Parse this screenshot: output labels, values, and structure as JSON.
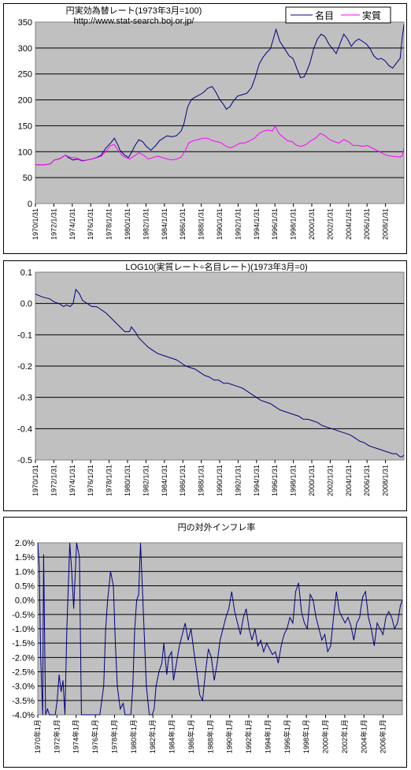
{
  "chart_data": [
    {
      "type": "line",
      "title": "円実効為替レート(1973年3月=100)",
      "subtitle": "http://www.stat-search.boj.or.jp/",
      "ylim": [
        0,
        375
      ],
      "yticks": [
        "0",
        "50",
        "100",
        "150",
        "200",
        "250",
        "300",
        "350"
      ],
      "xlim": [
        1970.0,
        2009.2
      ],
      "xticks": [
        "1970/1/31",
        "1972/1/31",
        "1974/1/31",
        "1976/1/31",
        "1978/1/31",
        "1980/1/31",
        "1982/1/31",
        "1984/1/31",
        "1986/1/31",
        "1988/1/31",
        "1990/1/31",
        "1992/1/31",
        "1994/1/31",
        "1996/1/31",
        "1998/1/31",
        "2000/1/31",
        "2002/1/31",
        "2004/1/31",
        "2006/1/31",
        "2008/1/31"
      ],
      "grid": true,
      "legend": "top-right",
      "series": [
        {
          "name": "名目",
          "color": "#000080",
          "x": [
            1970.0,
            1971.0,
            1971.6,
            1972.0,
            1972.5,
            1973.2,
            1973.5,
            1974.0,
            1974.5,
            1975.0,
            1975.5,
            1976.0,
            1976.5,
            1977.0,
            1977.5,
            1978.0,
            1978.4,
            1978.8,
            1979.0,
            1979.5,
            1979.9,
            1980.2,
            1980.6,
            1981.0,
            1981.4,
            1981.8,
            1982.3,
            1982.8,
            1983.2,
            1983.6,
            1984.0,
            1984.5,
            1985.0,
            1985.5,
            1985.8,
            1986.2,
            1986.6,
            1987.0,
            1987.5,
            1987.9,
            1988.3,
            1988.8,
            1989.2,
            1989.6,
            1990.0,
            1990.3,
            1990.7,
            1991.0,
            1991.5,
            1992.0,
            1992.5,
            1993.0,
            1993.4,
            1993.8,
            1994.2,
            1994.6,
            1995.0,
            1995.3,
            1995.6,
            1996.0,
            1996.5,
            1997.0,
            1997.4,
            1997.8,
            1998.2,
            1998.6,
            1998.9,
            1999.2,
            1999.6,
            2000.0,
            2000.4,
            2000.8,
            2001.2,
            2001.6,
            2002.0,
            2002.4,
            2002.8,
            2003.2,
            2003.6,
            2004.0,
            2004.4,
            2004.8,
            2005.2,
            2005.6,
            2006.0,
            2006.4,
            2006.8,
            2007.2,
            2007.6,
            2008.0,
            2008.4,
            2008.8,
            2009.0,
            2009.2
          ],
          "y": [
            80,
            80,
            82,
            90,
            92,
            100,
            95,
            90,
            92,
            88,
            90,
            92,
            95,
            100,
            115,
            125,
            135,
            120,
            110,
            100,
            95,
            105,
            120,
            132,
            128,
            118,
            110,
            120,
            130,
            135,
            140,
            138,
            140,
            150,
            165,
            200,
            215,
            220,
            225,
            230,
            238,
            242,
            230,
            215,
            205,
            195,
            200,
            210,
            222,
            225,
            228,
            240,
            262,
            288,
            302,
            312,
            320,
            340,
            360,
            335,
            320,
            305,
            300,
            280,
            260,
            262,
            275,
            290,
            320,
            340,
            350,
            345,
            330,
            320,
            310,
            330,
            350,
            340,
            325,
            335,
            340,
            335,
            330,
            320,
            305,
            298,
            300,
            295,
            285,
            280,
            290,
            300,
            340,
            370
          ]
        },
        {
          "name": "実質",
          "color": "#ff00ff",
          "x": [
            1970.0,
            1971.0,
            1971.6,
            1972.0,
            1972.5,
            1973.2,
            1973.6,
            1974.0,
            1974.5,
            1975.0,
            1975.5,
            1976.0,
            1976.6,
            1977.0,
            1977.5,
            1978.0,
            1978.4,
            1978.8,
            1979.2,
            1979.6,
            1980.0,
            1980.5,
            1981.0,
            1981.5,
            1982.0,
            1982.5,
            1983.0,
            1983.5,
            1984.0,
            1984.5,
            1985.0,
            1985.5,
            1985.9,
            1986.3,
            1986.8,
            1987.3,
            1987.8,
            1988.3,
            1988.8,
            1989.3,
            1989.8,
            1990.3,
            1990.8,
            1991.3,
            1991.8,
            1992.3,
            1992.8,
            1993.3,
            1993.8,
            1994.3,
            1994.8,
            1995.2,
            1995.5,
            1995.9,
            1996.3,
            1996.8,
            1997.3,
            1997.8,
            1998.3,
            1998.8,
            1999.3,
            1999.8,
            2000.3,
            2000.8,
            2001.3,
            2001.8,
            2002.3,
            2002.8,
            2003.3,
            2003.8,
            2004.3,
            2004.8,
            2005.3,
            2005.8,
            2006.3,
            2006.8,
            2007.3,
            2007.8,
            2008.3,
            2008.8,
            2009.0,
            2009.2
          ],
          "y": [
            80,
            80,
            82,
            90,
            92,
            100,
            96,
            95,
            93,
            89,
            90,
            92,
            95,
            98,
            108,
            120,
            122,
            110,
            100,
            95,
            92,
            98,
            105,
            100,
            92,
            95,
            98,
            95,
            92,
            90,
            92,
            96,
            108,
            125,
            130,
            132,
            135,
            135,
            130,
            128,
            125,
            118,
            115,
            120,
            125,
            125,
            130,
            135,
            145,
            150,
            152,
            150,
            160,
            145,
            138,
            130,
            128,
            120,
            118,
            122,
            130,
            135,
            145,
            140,
            132,
            128,
            125,
            132,
            128,
            120,
            120,
            118,
            120,
            115,
            110,
            105,
            100,
            98,
            97,
            96,
            98,
            115
          ]
        }
      ]
    },
    {
      "type": "line",
      "title": "LOG10(実質レート÷名目レート)(1973年3月=0)",
      "ylim": [
        -0.5,
        0.1
      ],
      "yticks": [
        "-0.5",
        "-0.4",
        "-0.3",
        "-0.2",
        "-0.1",
        "0.0",
        "0.1"
      ],
      "xlim": [
        1970.0,
        2009.2
      ],
      "xticks": [
        "1970/1/31",
        "1972/1/31",
        "1974/1/31",
        "1976/1/31",
        "1978/1/31",
        "1980/1/31",
        "1982/1/31",
        "1984/1/31",
        "1986/1/31",
        "1988/1/31",
        "1990/1/31",
        "1992/1/31",
        "1994/1/31",
        "1996/1/31",
        "1998/1/31",
        "2000/1/31",
        "2002/1/31",
        "2004/1/31",
        "2006/1/31",
        "2008/1/31"
      ],
      "grid": true,
      "series": [
        {
          "color": "#000080",
          "x": [
            1970.0,
            1970.8,
            1971.5,
            1972.0,
            1972.5,
            1973.0,
            1973.3,
            1973.7,
            1974.0,
            1974.3,
            1974.7,
            1975.0,
            1975.5,
            1976.0,
            1976.5,
            1977.0,
            1977.5,
            1978.0,
            1978.5,
            1979.0,
            1979.5,
            1980.0,
            1980.2,
            1980.6,
            1981.0,
            1981.5,
            1982.0,
            1982.5,
            1983.0,
            1983.5,
            1984.0,
            1984.5,
            1985.0,
            1985.5,
            1986.0,
            1986.5,
            1987.0,
            1987.5,
            1988.0,
            1988.5,
            1989.0,
            1989.5,
            1990.0,
            1990.5,
            1991.0,
            1991.5,
            1992.0,
            1992.5,
            1993.0,
            1993.5,
            1994.0,
            1994.5,
            1995.0,
            1995.5,
            1996.0,
            1996.5,
            1997.0,
            1997.5,
            1998.0,
            1998.5,
            1999.0,
            1999.5,
            2000.0,
            2000.5,
            2001.0,
            2001.5,
            2002.0,
            2002.5,
            2003.0,
            2003.5,
            2004.0,
            2004.5,
            2005.0,
            2005.5,
            2006.0,
            2006.5,
            2007.0,
            2007.5,
            2008.0,
            2008.4,
            2008.8,
            2009.0,
            2009.2
          ],
          "y": [
            0.03,
            0.02,
            0.015,
            0.005,
            0.0,
            -0.01,
            -0.005,
            -0.01,
            0.0,
            0.045,
            0.03,
            0.01,
            0.0,
            -0.01,
            -0.01,
            -0.02,
            -0.03,
            -0.045,
            -0.06,
            -0.075,
            -0.09,
            -0.09,
            -0.075,
            -0.09,
            -0.11,
            -0.125,
            -0.14,
            -0.15,
            -0.16,
            -0.165,
            -0.17,
            -0.175,
            -0.18,
            -0.19,
            -0.2,
            -0.205,
            -0.21,
            -0.22,
            -0.23,
            -0.235,
            -0.245,
            -0.245,
            -0.255,
            -0.255,
            -0.26,
            -0.265,
            -0.27,
            -0.28,
            -0.29,
            -0.3,
            -0.31,
            -0.315,
            -0.32,
            -0.33,
            -0.34,
            -0.345,
            -0.35,
            -0.355,
            -0.36,
            -0.37,
            -0.37,
            -0.375,
            -0.38,
            -0.39,
            -0.395,
            -0.4,
            -0.405,
            -0.41,
            -0.415,
            -0.42,
            -0.43,
            -0.44,
            -0.445,
            -0.455,
            -0.46,
            -0.465,
            -0.47,
            -0.475,
            -0.48,
            -0.48,
            -0.49,
            -0.49,
            -0.485
          ]
        }
      ]
    },
    {
      "type": "line",
      "title": "円の対外インフレ率",
      "ylim": [
        -4.0,
        2.0
      ],
      "yticks": [
        "-4.0%",
        "-3.5%",
        "-3.0%",
        "-2.5%",
        "-2.0%",
        "-1.5%",
        "-1.0%",
        "-0.5%",
        "0.0%",
        "0.5%",
        "1.0%",
        "1.5%",
        "2.0%"
      ],
      "xlim": [
        1970.0,
        2007.6
      ],
      "xticks": [
        "1970年1月",
        "1972年1月",
        "1974年1月",
        "1976年1月",
        "1978年1月",
        "1980年1月",
        "1982年1月",
        "1984年1月",
        "1986年1月",
        "1988年1月",
        "1990年1月",
        "1992年1月",
        "1994年1月",
        "1996年1月",
        "1998年1月",
        "2000年1月",
        "2002年1月",
        "2004年1月",
        "2006年1月"
      ],
      "grid": true,
      "series": [
        {
          "color": "#000080",
          "x": [
            1970.0,
            1970.15,
            1970.3,
            1970.5,
            1970.6,
            1970.8,
            1971.0,
            1971.2,
            1971.4,
            1971.6,
            1971.8,
            1972.0,
            1972.2,
            1972.4,
            1972.6,
            1972.8,
            1973.0,
            1973.3,
            1973.5,
            1973.7,
            1974.0,
            1974.3,
            1974.5,
            1974.8,
            1975.0,
            1975.3,
            1975.6,
            1976.0,
            1976.4,
            1976.8,
            1977.0,
            1977.2,
            1977.5,
            1977.8,
            1978.0,
            1978.2,
            1978.5,
            1978.8,
            1979.0,
            1979.3,
            1979.6,
            1979.8,
            1980.0,
            1980.2,
            1980.4,
            1980.6,
            1980.9,
            1981.2,
            1981.5,
            1981.8,
            1982.0,
            1982.2,
            1982.5,
            1982.8,
            1983.0,
            1983.3,
            1983.5,
            1983.8,
            1984.0,
            1984.3,
            1984.6,
            1984.9,
            1985.2,
            1985.5,
            1985.8,
            1986.1,
            1986.4,
            1986.7,
            1987.0,
            1987.3,
            1987.6,
            1987.9,
            1988.2,
            1988.5,
            1988.8,
            1989.1,
            1989.4,
            1989.7,
            1990.0,
            1990.3,
            1990.6,
            1990.9,
            1991.2,
            1991.5,
            1991.8,
            1992.1,
            1992.4,
            1992.7,
            1993.0,
            1993.3,
            1993.6,
            1993.9,
            1994.2,
            1994.5,
            1994.8,
            1995.1,
            1995.4,
            1995.7,
            1996.0,
            1996.3,
            1996.6,
            1996.9,
            1997.2,
            1997.5,
            1997.8,
            1998.1,
            1998.4,
            1998.7,
            1999.0,
            1999.3,
            1999.6,
            1999.9,
            2000.2,
            2000.5,
            2000.8,
            2001.1,
            2001.4,
            2001.7,
            2002.0,
            2002.3,
            2002.6,
            2002.9,
            2003.2,
            2003.5,
            2003.8,
            2004.1,
            2004.4,
            2004.7,
            2005.0,
            2005.3,
            2005.6,
            2005.9,
            2006.2,
            2006.5,
            2006.8,
            2007.1,
            2007.4,
            2007.6
          ],
          "y": [
            2.0,
            1.2,
            -2.0,
            -4.0,
            1.6,
            -4.0,
            -3.8,
            -4.0,
            -4.0,
            -4.0,
            -4.0,
            -3.5,
            -2.6,
            -3.2,
            -2.8,
            -4.0,
            -1.0,
            2.0,
            1.0,
            -0.3,
            2.0,
            1.5,
            -4.0,
            -4.0,
            -4.0,
            -4.0,
            -4.0,
            -4.0,
            -4.0,
            -3.0,
            -1.0,
            0.0,
            1.0,
            0.5,
            -1.5,
            -3.0,
            -3.8,
            -3.6,
            -4.0,
            -4.0,
            -4.0,
            -3.0,
            -1.0,
            0.0,
            0.2,
            2.0,
            -0.5,
            -3.0,
            -4.0,
            -4.0,
            -3.8,
            -3.0,
            -2.5,
            -2.2,
            -1.5,
            -2.6,
            -2.0,
            -1.8,
            -2.8,
            -2.2,
            -1.6,
            -1.2,
            -0.8,
            -1.4,
            -1.0,
            -1.8,
            -2.5,
            -3.3,
            -3.5,
            -2.5,
            -1.7,
            -2.0,
            -2.8,
            -2.2,
            -1.4,
            -1.0,
            -0.6,
            -0.3,
            0.3,
            -0.4,
            -0.8,
            -1.2,
            -0.6,
            -0.3,
            -1.0,
            -1.4,
            -1.0,
            -1.6,
            -1.4,
            -1.8,
            -1.5,
            -1.7,
            -1.9,
            -1.8,
            -2.2,
            -1.6,
            -1.2,
            -1.0,
            -0.6,
            -0.8,
            0.3,
            0.6,
            -0.4,
            -0.8,
            -1.0,
            0.2,
            0.0,
            -0.6,
            -1.0,
            -1.4,
            -1.2,
            -1.8,
            -1.6,
            -0.6,
            0.3,
            -0.4,
            -0.6,
            -0.8,
            -0.6,
            -0.9,
            -1.4,
            -0.8,
            -0.6,
            0.1,
            0.3,
            -0.6,
            -1.0,
            -1.6,
            -0.8,
            -1.0,
            -1.2,
            -0.6,
            -0.4,
            -0.6,
            -1.0,
            -0.8,
            -0.2,
            0.0
          ]
        }
      ]
    }
  ]
}
